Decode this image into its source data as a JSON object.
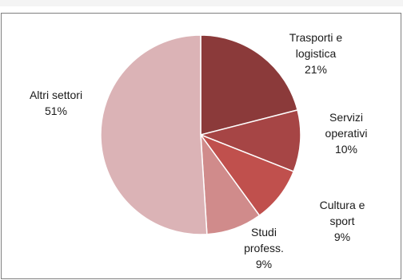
{
  "chart_data": {
    "type": "pie",
    "title": "",
    "start_angle_deg": 0,
    "direction": "clockwise",
    "slices": [
      {
        "label_lines": [
          "Trasporti e",
          "logistica"
        ],
        "value": 21,
        "value_label": "21%",
        "color": "#8b3a3a"
      },
      {
        "label_lines": [
          "Servizi",
          "operativi"
        ],
        "value": 10,
        "value_label": "10%",
        "color": "#a64545"
      },
      {
        "label_lines": [
          "Cultura e",
          "sport"
        ],
        "value": 9,
        "value_label": "9%",
        "color": "#c0504d"
      },
      {
        "label_lines": [
          "Studi",
          "profess."
        ],
        "value": 9,
        "value_label": "9%",
        "color": "#d08b8b"
      },
      {
        "label_lines": [
          "Altri settori"
        ],
        "value": 51,
        "value_label": "51%",
        "color": "#dbb3b6"
      }
    ]
  }
}
